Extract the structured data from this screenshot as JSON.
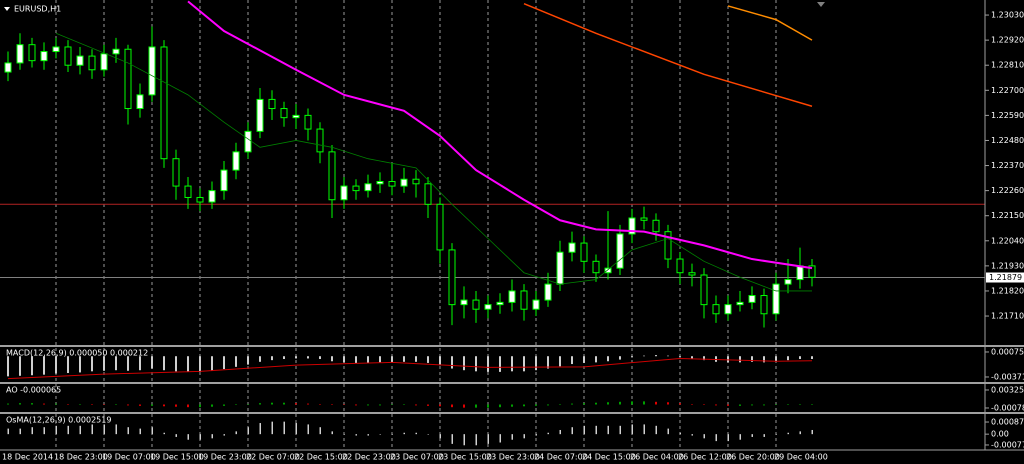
{
  "chart_data": [
    {
      "type": "candlestick",
      "title": "EURUSD,H1",
      "open": [
        1.2278,
        1.2282,
        1.229,
        1.2283,
        1.2287,
        1.2289,
        1.2281,
        1.2285,
        1.2279,
        1.2286,
        1.2288,
        1.2262,
        1.2268,
        1.2289,
        1.224,
        1.2228,
        1.2223,
        1.2221,
        1.2226,
        1.2235,
        1.2243,
        1.2252,
        1.2266,
        1.2262,
        1.2258,
        1.2259,
        1.2253,
        1.2243,
        1.2222,
        1.2228,
        1.2226,
        1.2229,
        1.223,
        1.2228,
        1.2231,
        1.2229,
        1.222,
        1.22,
        1.2176,
        1.2178,
        1.2174,
        1.2176,
        1.2177,
        1.2182,
        1.2174,
        1.2178,
        1.2185,
        1.2199,
        1.2203,
        1.2195,
        1.219,
        1.2192,
        1.2207,
        1.2214,
        1.2213,
        1.2208,
        1.2196,
        1.219,
        1.2189,
        1.2176,
        1.2172,
        1.2176,
        1.2177,
        1.218,
        1.2172,
        1.2185,
        1.2187,
        1.2193
      ],
      "high": [
        1.2287,
        1.2295,
        1.2293,
        1.2291,
        1.2293,
        1.2292,
        1.2289,
        1.2288,
        1.229,
        1.2293,
        1.229,
        1.2273,
        1.2298,
        1.2292,
        1.2244,
        1.2232,
        1.2227,
        1.223,
        1.2239,
        1.2247,
        1.2256,
        1.2271,
        1.227,
        1.2265,
        1.2264,
        1.2262,
        1.2256,
        1.2246,
        1.2232,
        1.2231,
        1.2233,
        1.2234,
        1.2238,
        1.2236,
        1.2235,
        1.2232,
        1.2223,
        1.2203,
        1.2184,
        1.2182,
        1.218,
        1.2181,
        1.2187,
        1.2185,
        1.2182,
        1.219,
        1.2204,
        1.2208,
        1.2206,
        1.2198,
        1.2217,
        1.2211,
        1.2218,
        1.2219,
        1.2216,
        1.2211,
        1.2199,
        1.2194,
        1.2192,
        1.218,
        1.218,
        1.2182,
        1.2184,
        1.2183,
        1.219,
        1.2196,
        1.2201,
        1.2196
      ],
      "low": [
        1.2274,
        1.2279,
        1.228,
        1.2279,
        1.2284,
        1.2278,
        1.2277,
        1.2275,
        1.2276,
        1.2282,
        1.2255,
        1.2258,
        1.2265,
        1.2236,
        1.2222,
        1.2218,
        1.2217,
        1.2218,
        1.2222,
        1.2231,
        1.224,
        1.2249,
        1.2257,
        1.2254,
        1.2253,
        1.2248,
        1.2238,
        1.2214,
        1.2218,
        1.2222,
        1.2223,
        1.2225,
        1.2224,
        1.2225,
        1.2223,
        1.2214,
        1.2194,
        1.2167,
        1.217,
        1.2168,
        1.217,
        1.2172,
        1.2173,
        1.2169,
        1.2171,
        1.2175,
        1.2182,
        1.2195,
        1.219,
        1.2186,
        1.2187,
        1.2189,
        1.2203,
        1.2209,
        1.2204,
        1.2192,
        1.2185,
        1.2184,
        1.217,
        1.2168,
        1.2169,
        1.2173,
        1.2174,
        1.2166,
        1.2169,
        1.2181,
        1.2183,
        1.2184
      ],
      "close": [
        1.2282,
        1.229,
        1.2283,
        1.2287,
        1.2289,
        1.2281,
        1.2285,
        1.2279,
        1.2286,
        1.2288,
        1.2262,
        1.2268,
        1.2289,
        1.224,
        1.2228,
        1.2223,
        1.2221,
        1.2226,
        1.2235,
        1.2243,
        1.2252,
        1.2266,
        1.2262,
        1.2258,
        1.2259,
        1.2253,
        1.2243,
        1.2222,
        1.2228,
        1.2226,
        1.2229,
        1.223,
        1.2228,
        1.2231,
        1.2229,
        1.222,
        1.22,
        1.2176,
        1.2178,
        1.2174,
        1.2176,
        1.2177,
        1.2182,
        1.2174,
        1.2178,
        1.2185,
        1.2199,
        1.2203,
        1.2195,
        1.219,
        1.2192,
        1.2207,
        1.2214,
        1.2213,
        1.2208,
        1.2196,
        1.219,
        1.2189,
        1.2176,
        1.2172,
        1.2176,
        1.2177,
        1.218,
        1.2172,
        1.2185,
        1.2187,
        1.2193,
        1.2188
      ],
      "up_color": "#ffffff",
      "down_color": "#000000",
      "wick_color": "#00ff00",
      "lines": [
        {
          "color": "#ff00ff",
          "x": [
            15,
            18,
            24,
            28,
            33,
            36,
            39,
            43,
            46,
            49,
            53,
            58,
            62,
            67
          ],
          "values": [
            1.2309,
            1.2296,
            1.2279,
            1.2268,
            1.2261,
            1.225,
            1.2235,
            1.2222,
            1.2213,
            1.2209,
            1.2208,
            1.2202,
            1.2196,
            1.2192
          ]
        },
        {
          "color": "#ff4500",
          "x": [
            43,
            49,
            58,
            67
          ],
          "values": [
            1.2308,
            1.2295,
            1.2277,
            1.2263
          ]
        },
        {
          "color": "#ff8c00",
          "x": [
            60,
            64,
            67
          ],
          "values": [
            1.2307,
            1.2301,
            1.2292
          ]
        },
        {
          "color": "#008000",
          "x": [
            4,
            10,
            15,
            18,
            21,
            24,
            27,
            30,
            34,
            37,
            40,
            43,
            46,
            49,
            52,
            55,
            58,
            61,
            64,
            67
          ],
          "values": [
            1.2295,
            1.2282,
            1.2268,
            1.2256,
            1.2245,
            1.2248,
            1.2245,
            1.224,
            1.2236,
            1.222,
            1.2205,
            1.219,
            1.2185,
            1.2187,
            1.22,
            1.2205,
            1.2195,
            1.2188,
            1.2182,
            1.2182
          ]
        }
      ],
      "hlines": [
        {
          "color": "#b22222",
          "value": 1.222
        }
      ],
      "last_price": 1.21879,
      "ylim": [
        1.21583,
        1.23096
      ],
      "yticks": [
        {
          "value": 1.2303,
          "label": "1.23030"
        },
        {
          "value": 1.2292,
          "label": "1.22920"
        },
        {
          "value": 1.2281,
          "label": "1.22810"
        },
        {
          "value": 1.227,
          "label": "1.22700"
        },
        {
          "value": 1.2259,
          "label": "1.22590"
        },
        {
          "value": 1.2248,
          "label": "1.22480"
        },
        {
          "value": 1.2237,
          "label": "1.22370"
        },
        {
          "value": 1.2226,
          "label": "1.22260"
        },
        {
          "value": 1.2215,
          "label": "1.22150"
        },
        {
          "value": 1.2204,
          "label": "1.22040"
        },
        {
          "value": 1.2193,
          "label": "1.21930"
        },
        {
          "value": 1.2182,
          "label": "1.21820"
        },
        {
          "value": 1.2171,
          "label": "1.21710"
        }
      ],
      "xlabels": [
        "18 Dec 2014",
        "18 Dec 23:00",
        "19 Dec 07:00",
        "19 Dec 15:00",
        "19 Dec 23:00",
        "22 Dec 07:00",
        "22 Dec 15:00",
        "22 Dec 23:00",
        "23 Dec 07:00",
        "23 Dec 15:00",
        "23 Dec 23:00",
        "24 Dec 07:00",
        "24 Dec 15:00",
        "26 Dec 04:00",
        "26 Dec 12:00",
        "26 Dec 20:00",
        "29 Dec 04:00"
      ]
    },
    {
      "type": "macd",
      "label": "MACD(12,26,9) 0.000050 0.000212",
      "color": "#d0d0d0",
      "signal_color": "#cc0000",
      "values": [
        -0.0036,
        -0.0035,
        -0.0034,
        -0.0033,
        -0.0031,
        -0.003,
        -0.0029,
        -0.0027,
        -0.0026,
        -0.0025,
        -0.0026,
        -0.0025,
        -0.0022,
        -0.0025,
        -0.0027,
        -0.0028,
        -0.0028,
        -0.0026,
        -0.0023,
        -0.0019,
        -0.0015,
        -0.001,
        -0.0007,
        -0.0005,
        -0.0004,
        -0.0004,
        -0.0005,
        -0.0009,
        -0.0011,
        -0.0012,
        -0.0012,
        -0.0011,
        -0.0011,
        -0.001,
        -0.001,
        -0.0012,
        -0.0016,
        -0.0022,
        -0.0025,
        -0.0027,
        -0.0028,
        -0.0028,
        -0.0027,
        -0.0027,
        -0.0025,
        -0.0022,
        -0.0018,
        -0.0014,
        -0.0012,
        -0.0011,
        -0.0009,
        -0.0006,
        -0.0002,
        0.0001,
        0.0002,
        0.0001,
        -0.0002,
        -0.0004,
        -0.0007,
        -0.001,
        -0.0011,
        -0.0011,
        -0.001,
        -0.0011,
        -0.0009,
        -0.0007,
        -0.0005,
        -0.0005
      ],
      "signal_x": [
        0,
        8,
        16,
        24,
        32,
        40,
        48,
        56,
        64,
        67
      ],
      "signal": [
        -0.004,
        -0.0032,
        -0.0027,
        -0.0016,
        -0.0011,
        -0.002,
        -0.0019,
        -0.0004,
        -0.0009,
        -0.0008
      ],
      "ylim": [
        -0.00461,
        0.00165
      ],
      "yticks": [
        0.000759,
        -0.003711
      ]
    },
    {
      "type": "ao",
      "label": "AO -0.000065",
      "up_color": "#00a000",
      "down_color": "#e00000",
      "values": [
        0.0002,
        0.0003,
        0.0003,
        0.0002,
        0.0002,
        0.0001,
        0.0001,
        0.0,
        -0.0001,
        -0.0001,
        -0.0002,
        -0.0003,
        -0.0003,
        -0.0004,
        -0.0005,
        -0.0006,
        -0.0006,
        -0.0005,
        -0.0003,
        -0.0001,
        0.0001,
        0.0003,
        0.0004,
        0.0004,
        0.0003,
        0.0002,
        0.0001,
        0.0,
        -0.0001,
        -0.0002,
        -0.0002,
        -0.0002,
        -0.0001,
        -0.0001,
        -0.0002,
        -0.0003,
        -0.0004,
        -0.0006,
        -0.0007,
        -0.0007,
        -0.0007,
        -0.0006,
        -0.0005,
        -0.0004,
        -0.0003,
        -0.0002,
        0.0,
        0.0002,
        0.0003,
        0.0004,
        0.0005,
        0.0006,
        0.0007,
        0.0007,
        0.0006,
        0.0005,
        0.0003,
        0.0001,
        -0.0001,
        -0.0002,
        -0.0003,
        -0.0003,
        -0.0002,
        -0.0002,
        -0.0001,
        0.0,
        0.0001,
        0.0001
      ],
      "ylim": [
        -0.00168,
        0.00459
      ],
      "yticks": [
        0.00325,
        -0.00078
      ]
    },
    {
      "type": "osma",
      "label": "OsMA(12,26,9) 0.0002519",
      "color": "#d0d0d0",
      "values": [
        0.0004,
        0.0004,
        0.0005,
        0.0005,
        0.0006,
        0.0006,
        0.0006,
        0.0007,
        0.0007,
        0.0007,
        0.0005,
        0.0004,
        0.0005,
        0.0001,
        -0.0002,
        -0.0004,
        -0.0004,
        -0.0003,
        -0.0001,
        0.0002,
        0.0005,
        0.0008,
        0.0009,
        0.0009,
        0.0008,
        0.0007,
        0.0005,
        0.0002,
        0.0,
        -0.0001,
        -0.0001,
        0.0,
        0.0,
        0.0001,
        0.0001,
        0.0,
        -0.0003,
        -0.0007,
        -0.0008,
        -0.0008,
        -0.0007,
        -0.0006,
        -0.0004,
        -0.0003,
        -0.0001,
        0.0001,
        0.0003,
        0.0005,
        0.0006,
        0.0006,
        0.0006,
        0.0006,
        0.0007,
        0.0007,
        0.0006,
        0.0004,
        0.0001,
        -0.0001,
        -0.0003,
        -0.0005,
        -0.0005,
        -0.0004,
        -0.0002,
        -0.0002,
        0.0,
        0.0001,
        0.0002,
        0.0003
      ],
      "ylim": [
        -0.00114,
        0.00145
      ],
      "yticks": [
        0.000873,
        {
          "value": 0,
          "label": "0.00"
        },
        -0.000778
      ]
    }
  ]
}
